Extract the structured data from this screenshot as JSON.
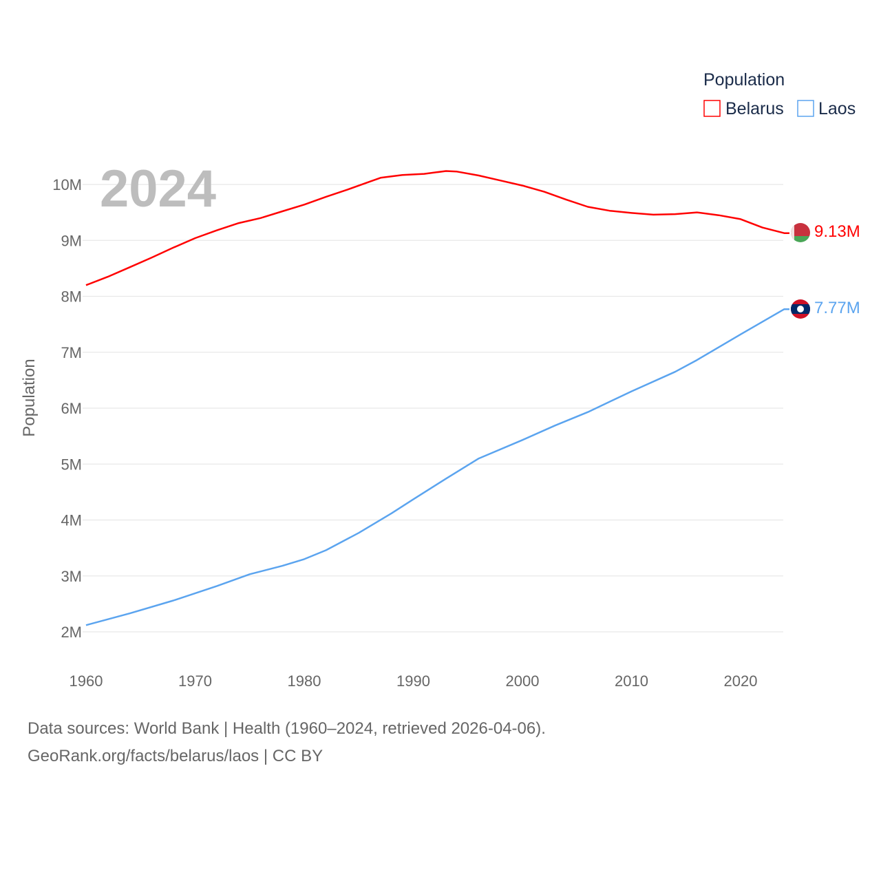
{
  "chart_data": {
    "type": "line",
    "ylabel": "Population",
    "year_label": "2024",
    "legend": {
      "title": "Population",
      "placement": "top-right"
    },
    "ylim": [
      2,
      10
    ],
    "xlim": [
      1960,
      2024
    ],
    "yticks": [
      {
        "v": 2,
        "label": "2M"
      },
      {
        "v": 3,
        "label": "3M"
      },
      {
        "v": 4,
        "label": "4M"
      },
      {
        "v": 5,
        "label": "5M"
      },
      {
        "v": 6,
        "label": "6M"
      },
      {
        "v": 7,
        "label": "7M"
      },
      {
        "v": 8,
        "label": "8M"
      },
      {
        "v": 9,
        "label": "9M"
      },
      {
        "v": 10,
        "label": "10M"
      }
    ],
    "xticks": [
      "1960",
      "1970",
      "1980",
      "1990",
      "2000",
      "2010",
      "2020"
    ],
    "series": [
      {
        "name": "Belarus",
        "color": "#ff0000",
        "end_label": "9.13M",
        "flag": "belarus-flag",
        "x": [
          1960,
          1962,
          1964,
          1966,
          1968,
          1970,
          1972,
          1974,
          1976,
          1978,
          1980,
          1982,
          1984,
          1986,
          1987,
          1989,
          1991,
          1993,
          1994,
          1996,
          1998,
          2000,
          2002,
          2004,
          2006,
          2008,
          2010,
          2012,
          2014,
          2016,
          2018,
          2020,
          2022,
          2024
        ],
        "y": [
          8.2,
          8.35,
          8.52,
          8.69,
          8.87,
          9.04,
          9.18,
          9.31,
          9.4,
          9.52,
          9.64,
          9.78,
          9.91,
          10.05,
          10.12,
          10.17,
          10.19,
          10.24,
          10.23,
          10.16,
          10.07,
          9.98,
          9.87,
          9.73,
          9.6,
          9.53,
          9.49,
          9.46,
          9.47,
          9.5,
          9.45,
          9.38,
          9.23,
          9.13
        ]
      },
      {
        "name": "Laos",
        "color": "#5ba4ef",
        "end_label": "7.77M",
        "flag": "laos-flag",
        "x": [
          1960,
          1964,
          1968,
          1972,
          1975,
          1978,
          1980,
          1982,
          1985,
          1988,
          1990,
          1993,
          1996,
          2000,
          2003,
          2006,
          2010,
          2014,
          2016,
          2020,
          2024
        ],
        "y": [
          2.12,
          2.33,
          2.56,
          2.82,
          3.03,
          3.18,
          3.3,
          3.46,
          3.77,
          4.12,
          4.37,
          4.74,
          5.1,
          5.43,
          5.69,
          5.93,
          6.3,
          6.65,
          6.86,
          7.32,
          7.77
        ]
      }
    ]
  },
  "footer": {
    "line1": "Data sources: World Bank | Health (1960–2024, retrieved 2026-04-06).",
    "line2": "GeoRank.org/facts/belarus/laos | CC BY"
  }
}
